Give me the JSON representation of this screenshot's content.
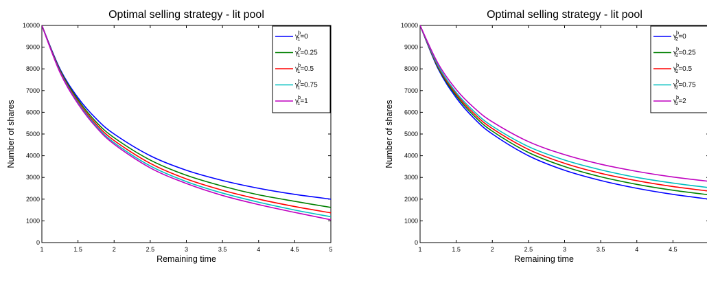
{
  "chart_data": [
    {
      "type": "line",
      "title": "Optimal selling strategy - lit pool",
      "xlabel": "Remaining time",
      "ylabel": "Number of shares",
      "xlim": [
        1,
        5
      ],
      "ylim": [
        0,
        10000
      ],
      "xticks": [
        1,
        1.5,
        2,
        2.5,
        3,
        3.5,
        4,
        4.5,
        5
      ],
      "xtick_labels": [
        "1",
        "1.5",
        "2",
        "2.5",
        "3",
        "3.5",
        "4",
        "4.5",
        "5"
      ],
      "yticks": [
        0,
        1000,
        2000,
        3000,
        4000,
        5000,
        6000,
        7000,
        8000,
        9000,
        10000
      ],
      "ytick_labels": [
        "0",
        "1000",
        "2000",
        "3000",
        "4000",
        "5000",
        "6000",
        "7000",
        "8000",
        "9000",
        "10000"
      ],
      "grid": false,
      "legend_position": "top-right",
      "x": [
        1,
        1.25,
        1.5,
        1.75,
        2,
        2.5,
        3,
        3.5,
        4,
        4.5,
        5
      ],
      "series": [
        {
          "name": "γ1b=0",
          "legend": {
            "sym": "γ",
            "sub": "1",
            "sup": "b",
            "val": "=0"
          },
          "color": "#0000ff",
          "values": [
            10000,
            8000,
            6670,
            5710,
            5000,
            4000,
            3330,
            2860,
            2500,
            2220,
            2000
          ]
        },
        {
          "name": "γ1b=0.25",
          "legend": {
            "sym": "γ",
            "sub": "1",
            "sup": "b",
            "val": "=0.25"
          },
          "color": "#008000",
          "values": [
            10000,
            7950,
            6580,
            5560,
            4830,
            3800,
            3100,
            2600,
            2200,
            1900,
            1620
          ]
        },
        {
          "name": "γ1b=0.5",
          "legend": {
            "sym": "γ",
            "sub": "1",
            "sup": "b",
            "val": "=0.5"
          },
          "color": "#ff0000",
          "values": [
            10000,
            7900,
            6500,
            5460,
            4700,
            3650,
            2930,
            2410,
            2000,
            1660,
            1370
          ]
        },
        {
          "name": "γ1b=0.75",
          "legend": {
            "sym": "γ",
            "sub": "1",
            "sup": "b",
            "val": "=0.75"
          },
          "color": "#00bfbf",
          "values": [
            10000,
            7870,
            6440,
            5380,
            4600,
            3530,
            2810,
            2280,
            1860,
            1500,
            1190
          ]
        },
        {
          "name": "γ1b=1",
          "legend": {
            "sym": "γ",
            "sub": "1",
            "sup": "b",
            "val": "=1"
          },
          "color": "#bf00bf",
          "values": [
            10000,
            7840,
            6390,
            5320,
            4530,
            3440,
            2720,
            2170,
            1750,
            1390,
            1050
          ]
        }
      ]
    },
    {
      "type": "line",
      "title": "Optimal selling strategy - lit pool",
      "xlabel": "Remaining time",
      "ylabel": "Number of shares",
      "xlim": [
        1,
        5
      ],
      "ylim": [
        0,
        10000
      ],
      "xticks": [
        1,
        1.5,
        2,
        2.5,
        3,
        3.5,
        4,
        4.5
      ],
      "xtick_labels": [
        "1",
        "1.5",
        "2",
        "2.5",
        "3",
        "3.5",
        "4",
        "4.5"
      ],
      "yticks": [
        0,
        1000,
        2000,
        3000,
        4000,
        5000,
        6000,
        7000,
        8000,
        9000,
        10000
      ],
      "ytick_labels": [
        "0",
        "1000",
        "2000",
        "3000",
        "4000",
        "5000",
        "6000",
        "7000",
        "8000",
        "9000",
        "10000"
      ],
      "grid": false,
      "legend_position": "top-right",
      "x": [
        1,
        1.25,
        1.5,
        1.75,
        2,
        2.5,
        3,
        3.5,
        4,
        4.5,
        5
      ],
      "series": [
        {
          "name": "γ2b=0",
          "legend": {
            "sym": "γ",
            "sub": "2",
            "sup": "b",
            "val": "=0"
          },
          "color": "#0000ff",
          "values": [
            10000,
            8000,
            6670,
            5710,
            5000,
            4000,
            3330,
            2860,
            2500,
            2220,
            2000
          ]
        },
        {
          "name": "γ2b=0.25",
          "legend": {
            "sym": "γ",
            "sub": "2",
            "sup": "b",
            "val": "=0.25"
          },
          "color": "#008000",
          "values": [
            10000,
            8050,
            6760,
            5830,
            5130,
            4150,
            3500,
            3030,
            2680,
            2410,
            2200
          ]
        },
        {
          "name": "γ2b=0.5",
          "legend": {
            "sym": "γ",
            "sub": "2",
            "sup": "b",
            "val": "=0.5"
          },
          "color": "#ff0000",
          "values": [
            10000,
            8100,
            6840,
            5930,
            5250,
            4290,
            3650,
            3190,
            2850,
            2580,
            2370
          ]
        },
        {
          "name": "γ2b=0.75",
          "legend": {
            "sym": "γ",
            "sub": "2",
            "sup": "b",
            "val": "=0.75"
          },
          "color": "#00bfbf",
          "values": [
            10000,
            8150,
            6910,
            6030,
            5360,
            4420,
            3800,
            3350,
            3000,
            2740,
            2530
          ]
        },
        {
          "name": "γ2b=2",
          "legend": {
            "sym": "γ",
            "sub": "2",
            "sup": "b",
            "val": "=2"
          },
          "color": "#bf00bf",
          "values": [
            10000,
            8240,
            7050,
            6200,
            5560,
            4650,
            4050,
            3610,
            3280,
            3020,
            2820
          ]
        }
      ]
    }
  ]
}
